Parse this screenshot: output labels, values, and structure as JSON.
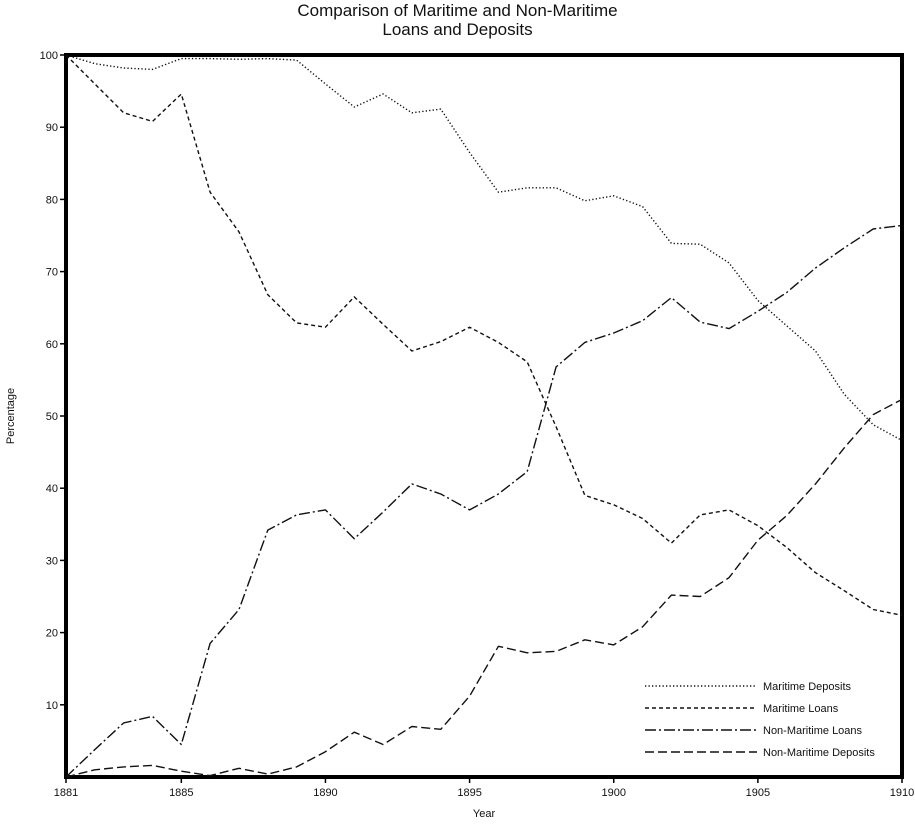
{
  "chart_data": {
    "type": "line",
    "title": [
      "Comparison of Maritime and Non-Maritime",
      "Loans and Deposits"
    ],
    "xlabel": "Year",
    "ylabel": "Percentage",
    "xlim": [
      1881,
      1910
    ],
    "ylim": [
      0,
      100
    ],
    "xticks": [
      1881,
      1885,
      1890,
      1895,
      1900,
      1905,
      1910
    ],
    "yticks": [
      10,
      20,
      30,
      40,
      50,
      60,
      70,
      80,
      90,
      100
    ],
    "grid": false,
    "legend_position": "bottom-right",
    "x": [
      1881,
      1882,
      1883,
      1884,
      1885,
      1886,
      1887,
      1888,
      1889,
      1890,
      1891,
      1892,
      1893,
      1894,
      1895,
      1896,
      1897,
      1898,
      1899,
      1900,
      1901,
      1902,
      1903,
      1904,
      1905,
      1906,
      1907,
      1908,
      1909,
      1910
    ],
    "series": [
      {
        "name": "Maritime Deposits",
        "dash": "dotted",
        "values": [
          100,
          98.8,
          98.2,
          98,
          99.5,
          99.5,
          99.4,
          99.5,
          99.3,
          96,
          92.8,
          94.6,
          92,
          92.5,
          86.5,
          81,
          81.6,
          81.6,
          79.8,
          80.5,
          79,
          73.9,
          73.8,
          71.2,
          66,
          62.5,
          59,
          53,
          48.8,
          46.6
        ]
      },
      {
        "name": "Maritime Loans",
        "dash": "dashed",
        "values": [
          100,
          96,
          92,
          90.8,
          94.6,
          81,
          75.5,
          66.8,
          62.9,
          62.3,
          66.5,
          62.7,
          59,
          60.3,
          62.3,
          60.2,
          57.5,
          48.5,
          39,
          37.7,
          35.8,
          32.4,
          36.3,
          37,
          34.8,
          31.8,
          28.3,
          25.8,
          23.2,
          22.4
        ]
      },
      {
        "name": "Non-Maritime Loans",
        "dash": "dash-dot",
        "values": [
          0,
          3.8,
          7.5,
          8.4,
          4.5,
          18.5,
          23.2,
          34.2,
          36.3,
          37,
          33,
          36.7,
          40.6,
          39.2,
          37,
          39.2,
          42.3,
          56.8,
          60.2,
          61.5,
          63.2,
          66.4,
          63,
          62.1,
          64.5,
          67.1,
          70.5,
          73.3,
          75.9,
          76.4
        ]
      },
      {
        "name": "Non-Maritime Deposits",
        "dash": "long-dash",
        "values": [
          0,
          1,
          1.4,
          1.6,
          0.8,
          0.2,
          1.2,
          0.4,
          1.4,
          3.5,
          6.2,
          4.5,
          7,
          6.6,
          11.2,
          18.1,
          17.2,
          17.4,
          19,
          18.3,
          20.8,
          25.2,
          25,
          27.6,
          32.8,
          36.2,
          40.6,
          45.6,
          50.2,
          52.3
        ]
      }
    ]
  }
}
